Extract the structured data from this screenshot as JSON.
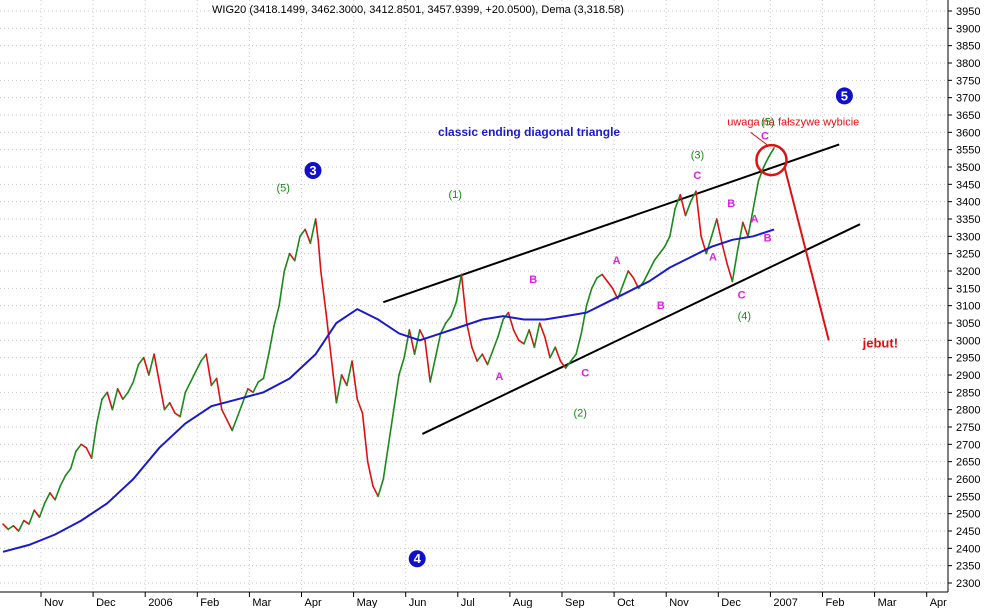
{
  "chart_data": {
    "type": "line",
    "title": "WIG20 (3418.1499, 3462.3000, 3412.8501, 3457.9399, +20.0500), Dema (3,318.58)",
    "ylim": [
      2300,
      3950
    ],
    "y_ticks": [
      2300,
      2350,
      2400,
      2450,
      2500,
      2550,
      2600,
      2650,
      2700,
      2750,
      2800,
      2850,
      2900,
      2950,
      3000,
      3050,
      3100,
      3150,
      3200,
      3250,
      3300,
      3350,
      3400,
      3450,
      3500,
      3550,
      3600,
      3650,
      3700,
      3750,
      3800,
      3850,
      3900,
      3950
    ],
    "y_ticks_label": [
      "2300",
      "2350",
      "2400",
      "2450",
      "2500",
      "2550",
      "2600",
      "2650",
      "2700",
      "2750",
      "2800",
      "2850",
      "2900",
      "2950",
      "3000",
      "3050",
      "3100",
      "3150",
      "3200",
      "3250",
      "3300",
      "3350",
      "3400",
      "3450",
      "3500",
      "3550",
      "3600",
      "3650",
      "3700",
      "3750",
      "3800",
      "3850",
      "3900",
      "3950"
    ],
    "x_ticks": [
      {
        "label": "Nov",
        "t": 0
      },
      {
        "label": "Dec",
        "t": 1
      },
      {
        "label": "2006",
        "t": 2
      },
      {
        "label": "Feb",
        "t": 3
      },
      {
        "label": "Mar",
        "t": 4
      },
      {
        "label": "Apr",
        "t": 5
      },
      {
        "label": "May",
        "t": 6
      },
      {
        "label": "Jun",
        "t": 7
      },
      {
        "label": "Jul",
        "t": 8
      },
      {
        "label": "Aug",
        "t": 9
      },
      {
        "label": "Sep",
        "t": 10
      },
      {
        "label": "Oct",
        "t": 11
      },
      {
        "label": "Nov",
        "t": 12
      },
      {
        "label": "Dec",
        "t": 13
      },
      {
        "label": "2007",
        "t": 14
      },
      {
        "label": "Feb",
        "t": 15
      },
      {
        "label": "Mar",
        "t": 16
      },
      {
        "label": "Apr",
        "t": 17
      }
    ],
    "grid": true,
    "series": [
      {
        "name": "WIG20",
        "color_up": "#1a8a1a",
        "color_down": "#e01010",
        "points": [
          [
            0.0,
            2470
          ],
          [
            0.1,
            2455
          ],
          [
            0.2,
            2465
          ],
          [
            0.3,
            2450
          ],
          [
            0.4,
            2480
          ],
          [
            0.5,
            2470
          ],
          [
            0.6,
            2510
          ],
          [
            0.7,
            2490
          ],
          [
            0.8,
            2530
          ],
          [
            0.9,
            2560
          ],
          [
            1.0,
            2540
          ],
          [
            1.1,
            2580
          ],
          [
            1.2,
            2610
          ],
          [
            1.3,
            2630
          ],
          [
            1.4,
            2680
          ],
          [
            1.5,
            2700
          ],
          [
            1.6,
            2690
          ],
          [
            1.7,
            2660
          ],
          [
            1.8,
            2760
          ],
          [
            1.9,
            2830
          ],
          [
            2.0,
            2850
          ],
          [
            2.1,
            2800
          ],
          [
            2.2,
            2860
          ],
          [
            2.3,
            2830
          ],
          [
            2.4,
            2850
          ],
          [
            2.5,
            2880
          ],
          [
            2.6,
            2930
          ],
          [
            2.7,
            2950
          ],
          [
            2.8,
            2900
          ],
          [
            2.9,
            2960
          ],
          [
            3.0,
            2880
          ],
          [
            3.05,
            2840
          ],
          [
            3.1,
            2800
          ],
          [
            3.2,
            2820
          ],
          [
            3.3,
            2790
          ],
          [
            3.4,
            2780
          ],
          [
            3.5,
            2850
          ],
          [
            3.6,
            2880
          ],
          [
            3.7,
            2910
          ],
          [
            3.8,
            2940
          ],
          [
            3.9,
            2960
          ],
          [
            4.0,
            2870
          ],
          [
            4.1,
            2890
          ],
          [
            4.2,
            2800
          ],
          [
            4.3,
            2770
          ],
          [
            4.4,
            2740
          ],
          [
            4.5,
            2780
          ],
          [
            4.6,
            2820
          ],
          [
            4.7,
            2860
          ],
          [
            4.8,
            2850
          ],
          [
            4.9,
            2880
          ],
          [
            5.0,
            2890
          ],
          [
            5.1,
            2960
          ],
          [
            5.2,
            3040
          ],
          [
            5.3,
            3100
          ],
          [
            5.4,
            3200
          ],
          [
            5.5,
            3250
          ],
          [
            5.6,
            3230
          ],
          [
            5.7,
            3300
          ],
          [
            5.8,
            3320
          ],
          [
            5.9,
            3280
          ],
          [
            6.0,
            3350
          ],
          [
            6.05,
            3290
          ],
          [
            6.1,
            3200
          ],
          [
            6.2,
            3080
          ],
          [
            6.3,
            2950
          ],
          [
            6.4,
            2820
          ],
          [
            6.5,
            2900
          ],
          [
            6.6,
            2870
          ],
          [
            6.7,
            2940
          ],
          [
            6.8,
            2830
          ],
          [
            6.9,
            2790
          ],
          [
            7.0,
            2650
          ],
          [
            7.1,
            2580
          ],
          [
            7.2,
            2550
          ],
          [
            7.3,
            2600
          ],
          [
            7.4,
            2700
          ],
          [
            7.5,
            2800
          ],
          [
            7.6,
            2900
          ],
          [
            7.7,
            2950
          ],
          [
            7.8,
            3030
          ],
          [
            7.9,
            2960
          ],
          [
            8.0,
            3030
          ],
          [
            8.1,
            3000
          ],
          [
            8.2,
            2880
          ],
          [
            8.3,
            2950
          ],
          [
            8.4,
            3020
          ],
          [
            8.5,
            3050
          ],
          [
            8.6,
            3070
          ],
          [
            8.7,
            3110
          ],
          [
            8.8,
            3190
          ],
          [
            8.9,
            3050
          ],
          [
            9.0,
            2980
          ],
          [
            9.1,
            2940
          ],
          [
            9.2,
            2960
          ],
          [
            9.3,
            2930
          ],
          [
            9.4,
            2970
          ],
          [
            9.5,
            3010
          ],
          [
            9.6,
            3060
          ],
          [
            9.7,
            3080
          ],
          [
            9.8,
            3030
          ],
          [
            9.9,
            3000
          ],
          [
            10.0,
            2990
          ],
          [
            10.1,
            3030
          ],
          [
            10.2,
            2980
          ],
          [
            10.3,
            3050
          ],
          [
            10.4,
            3010
          ],
          [
            10.5,
            2950
          ],
          [
            10.6,
            2980
          ],
          [
            10.7,
            2940
          ],
          [
            10.8,
            2920
          ],
          [
            10.9,
            2940
          ],
          [
            11.0,
            2960
          ],
          [
            11.1,
            3020
          ],
          [
            11.2,
            3100
          ],
          [
            11.3,
            3150
          ],
          [
            11.4,
            3180
          ],
          [
            11.5,
            3190
          ],
          [
            11.6,
            3170
          ],
          [
            11.7,
            3150
          ],
          [
            11.8,
            3120
          ],
          [
            11.9,
            3160
          ],
          [
            12.0,
            3200
          ],
          [
            12.1,
            3180
          ],
          [
            12.2,
            3150
          ],
          [
            12.3,
            3170
          ],
          [
            12.4,
            3200
          ],
          [
            12.5,
            3230
          ],
          [
            12.6,
            3250
          ],
          [
            12.7,
            3270
          ],
          [
            12.8,
            3300
          ],
          [
            12.9,
            3380
          ],
          [
            13.0,
            3420
          ],
          [
            13.1,
            3360
          ],
          [
            13.2,
            3400
          ],
          [
            13.3,
            3430
          ],
          [
            13.4,
            3300
          ],
          [
            13.5,
            3250
          ],
          [
            13.6,
            3300
          ],
          [
            13.7,
            3350
          ],
          [
            13.8,
            3280
          ],
          [
            13.9,
            3220
          ],
          [
            14.0,
            3170
          ],
          [
            14.1,
            3260
          ],
          [
            14.2,
            3340
          ],
          [
            14.3,
            3300
          ],
          [
            14.4,
            3380
          ],
          [
            14.5,
            3460
          ],
          [
            14.6,
            3500
          ],
          [
            14.7,
            3530
          ],
          [
            14.8,
            3555
          ]
        ]
      },
      {
        "name": "Dema",
        "color": "#1a1acc",
        "points": [
          [
            0.0,
            2390
          ],
          [
            0.5,
            2410
          ],
          [
            1.0,
            2440
          ],
          [
            1.5,
            2480
          ],
          [
            2.0,
            2530
          ],
          [
            2.5,
            2600
          ],
          [
            3.0,
            2690
          ],
          [
            3.5,
            2760
          ],
          [
            4.0,
            2810
          ],
          [
            4.5,
            2830
          ],
          [
            5.0,
            2850
          ],
          [
            5.5,
            2890
          ],
          [
            6.0,
            2960
          ],
          [
            6.4,
            3050
          ],
          [
            6.8,
            3090
          ],
          [
            7.2,
            3060
          ],
          [
            7.6,
            3020
          ],
          [
            8.0,
            3000
          ],
          [
            8.4,
            3020
          ],
          [
            8.8,
            3040
          ],
          [
            9.2,
            3060
          ],
          [
            9.6,
            3070
          ],
          [
            10.0,
            3060
          ],
          [
            10.4,
            3060
          ],
          [
            10.8,
            3070
          ],
          [
            11.2,
            3080
          ],
          [
            11.6,
            3110
          ],
          [
            12.0,
            3140
          ],
          [
            12.4,
            3170
          ],
          [
            12.8,
            3210
          ],
          [
            13.2,
            3240
          ],
          [
            13.6,
            3270
          ],
          [
            14.0,
            3290
          ],
          [
            14.4,
            3300
          ],
          [
            14.8,
            3320
          ]
        ]
      }
    ],
    "annotations": [
      {
        "text": "classic ending diagonal triangle",
        "t": 8.35,
        "y": 3590,
        "style": "blue-bold"
      },
      {
        "text": "uwaga na fałszywe wybicie",
        "t": 13.9,
        "y": 3620,
        "style": "red"
      },
      {
        "text": "jebut!",
        "t": 16.5,
        "y": 2980,
        "style": "red-bold"
      },
      {
        "text": "(5)",
        "t": 5.25,
        "y": 3430,
        "style": "green"
      },
      {
        "text": "(1)",
        "t": 8.55,
        "y": 3410,
        "style": "green"
      },
      {
        "text": "(2)",
        "t": 10.95,
        "y": 2780,
        "style": "green"
      },
      {
        "text": "(3)",
        "t": 13.2,
        "y": 3525,
        "style": "green"
      },
      {
        "text": "(4)",
        "t": 14.1,
        "y": 3060,
        "style": "green"
      },
      {
        "text": "(5)",
        "t": 14.55,
        "y": 3620,
        "style": "green"
      },
      {
        "text": "A",
        "t": 9.45,
        "y": 2885,
        "style": "magenta"
      },
      {
        "text": "B",
        "t": 10.1,
        "y": 3165,
        "style": "magenta"
      },
      {
        "text": "C",
        "t": 11.1,
        "y": 2895,
        "style": "magenta"
      },
      {
        "text": "A",
        "t": 11.7,
        "y": 3220,
        "style": "magenta"
      },
      {
        "text": "B",
        "t": 12.55,
        "y": 3090,
        "style": "magenta"
      },
      {
        "text": "C",
        "t": 13.25,
        "y": 3465,
        "style": "magenta"
      },
      {
        "text": "A",
        "t": 13.55,
        "y": 3230,
        "style": "magenta"
      },
      {
        "text": "B",
        "t": 13.9,
        "y": 3385,
        "style": "magenta"
      },
      {
        "text": "C",
        "t": 14.1,
        "y": 3120,
        "style": "magenta"
      },
      {
        "text": "A",
        "t": 14.35,
        "y": 3340,
        "style": "magenta"
      },
      {
        "text": "B",
        "t": 14.6,
        "y": 3285,
        "style": "magenta"
      },
      {
        "text": "C",
        "t": 14.55,
        "y": 3580,
        "style": "magenta"
      }
    ],
    "wave_markers": [
      {
        "text": "3",
        "t": 5.95,
        "y": 3490
      },
      {
        "text": "4",
        "t": 7.95,
        "y": 2370
      },
      {
        "text": "5",
        "t": 16.15,
        "y": 3705
      }
    ],
    "trendlines": [
      {
        "color": "#000000",
        "from": [
          7.3,
          3110
        ],
        "to": [
          16.05,
          3565
        ]
      },
      {
        "color": "#000000",
        "from": [
          8.05,
          2730
        ],
        "to": [
          16.45,
          3335
        ]
      },
      {
        "color": "#e01010",
        "from": [
          15.0,
          3500
        ],
        "to": [
          15.85,
          3000
        ]
      }
    ],
    "highlight_circle": {
      "color": "#e01010",
      "t": 14.75,
      "y": 3520
    },
    "pointer_line": {
      "color": "#e01010",
      "from": [
        14.35,
        3600
      ],
      "to": [
        14.7,
        3560
      ]
    }
  }
}
